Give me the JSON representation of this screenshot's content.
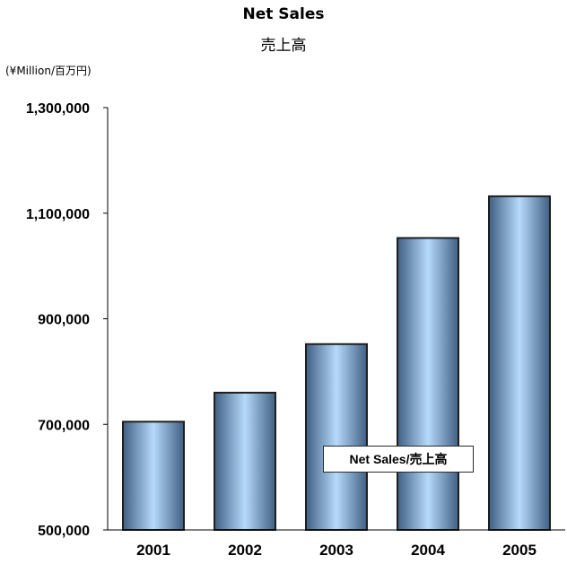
{
  "header": {
    "title": "Net Sales",
    "subtitle": "売上高",
    "unit_label": "(¥Million/百万円)"
  },
  "legend": {
    "label": "Net Sales/売上高"
  },
  "colors": {
    "bar_dark": "#3f5f83",
    "bar_light": "#b6dafb",
    "bar_edge": "#1f1f1f",
    "axis": "#000000"
  },
  "chart_data": {
    "type": "bar",
    "title": "Net Sales",
    "subtitle": "売上高",
    "ylabel": "(¥Million/百万円)",
    "xlabel": "",
    "categories": [
      "2001",
      "2002",
      "2003",
      "2004",
      "2005"
    ],
    "series": [
      {
        "name": "Net Sales/売上高",
        "values": [
          705000,
          760000,
          852000,
          1053000,
          1132000
        ]
      }
    ],
    "ylim": [
      500000,
      1300000
    ],
    "yticks": [
      500000,
      700000,
      900000,
      1100000,
      1300000
    ],
    "ytick_labels": [
      "500,000",
      "700,000",
      "900,000",
      "1,100,000",
      "1,300,000"
    ],
    "grid": false,
    "legend_position": "bottom-center"
  }
}
